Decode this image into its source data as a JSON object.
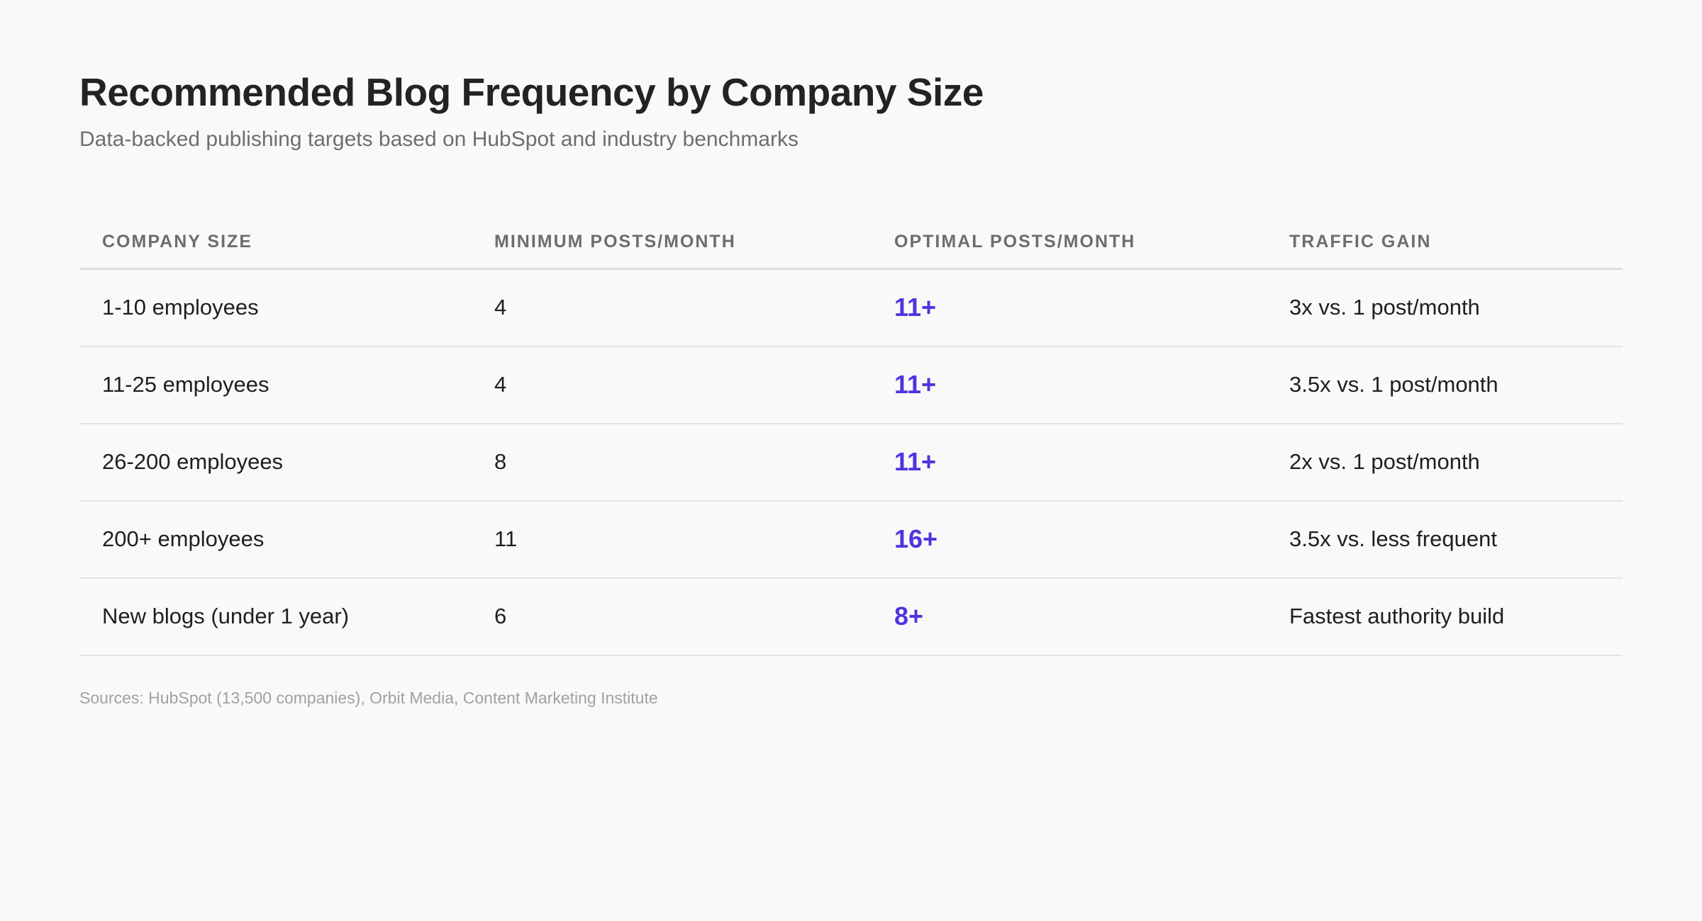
{
  "header": {
    "title": "Recommended Blog Frequency by Company Size",
    "subtitle": "Data-backed publishing targets based on HubSpot and industry benchmarks"
  },
  "table": {
    "columns": [
      "Company Size",
      "Minimum Posts/Month",
      "Optimal Posts/Month",
      "Traffic Gain"
    ],
    "rows": [
      {
        "company_size": "1-10 employees",
        "minimum": "4",
        "optimal": "11+",
        "traffic_gain": "3x vs. 1 post/month"
      },
      {
        "company_size": "11-25 employees",
        "minimum": "4",
        "optimal": "11+",
        "traffic_gain": "3.5x vs. 1 post/month"
      },
      {
        "company_size": "26-200 employees",
        "minimum": "8",
        "optimal": "11+",
        "traffic_gain": "2x vs. 1 post/month"
      },
      {
        "company_size": "200+ employees",
        "minimum": "11",
        "optimal": "16+",
        "traffic_gain": "3.5x vs. less frequent"
      },
      {
        "company_size": "New blogs (under 1 year)",
        "minimum": "6",
        "optimal": "8+",
        "traffic_gain": "Fastest authority build"
      }
    ]
  },
  "footer": {
    "sources": "Sources: HubSpot (13,500 companies), Orbit Media, Content Marketing Institute"
  },
  "colors": {
    "background": "#f9f9f9",
    "accent": "#4f35e0",
    "header_text": "#6f6d6a"
  }
}
